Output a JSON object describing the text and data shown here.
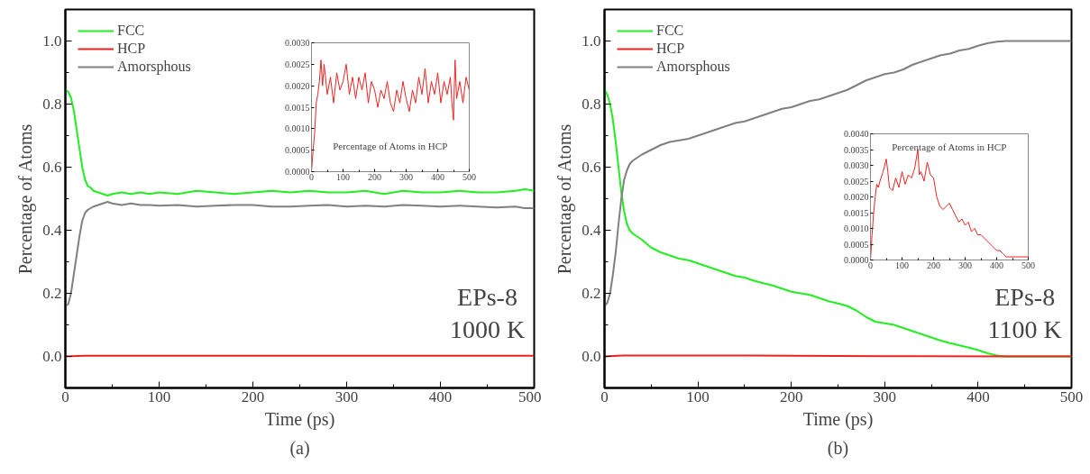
{
  "chart_data": [
    {
      "type": "line",
      "xlabel": "Time (ps)",
      "ylabel": "Percentage of Atoms",
      "legend": "top left",
      "line_style": "solid",
      "xlim": [
        0,
        500
      ],
      "ylim": [
        -0.1,
        1.1
      ],
      "xticks": [
        0,
        {
          "value": 50,
          "label": null
        },
        100,
        {
          "value": 150,
          "label": null
        },
        200,
        {
          "value": 250,
          "label": null
        },
        300,
        {
          "value": 350,
          "label": null
        },
        400,
        {
          "value": 450,
          "label": null
        },
        500
      ],
      "yticks": [
        {
          "value": -0.1,
          "label": null
        },
        {
          "value": 0,
          "label": "0.0"
        },
        {
          "value": 0.1,
          "label": null
        },
        0.2,
        {
          "value": 0.3,
          "label": null
        },
        0.4,
        {
          "value": 0.5,
          "label": null
        },
        0.6,
        {
          "value": 0.7,
          "label": null
        },
        0.8,
        {
          "value": 0.9,
          "label": null
        },
        {
          "value": 1.0,
          "label": "1.0"
        }
      ],
      "annotations": [
        "EPs-8",
        "1000 K",
        "(a)"
      ],
      "series": [
        {
          "name": "FCC",
          "color": "#22ee22",
          "x": [
            0,
            3,
            6,
            9,
            12,
            15,
            18,
            21,
            24,
            27,
            30,
            35,
            40,
            45,
            50,
            60,
            70,
            80,
            90,
            100,
            120,
            140,
            160,
            180,
            200,
            220,
            240,
            260,
            280,
            300,
            320,
            340,
            360,
            380,
            400,
            420,
            440,
            460,
            480,
            490,
            500
          ],
          "values": [
            0.845,
            0.84,
            0.82,
            0.78,
            0.72,
            0.66,
            0.6,
            0.56,
            0.54,
            0.535,
            0.525,
            0.52,
            0.515,
            0.51,
            0.515,
            0.52,
            0.515,
            0.52,
            0.515,
            0.52,
            0.515,
            0.525,
            0.52,
            0.515,
            0.52,
            0.525,
            0.52,
            0.525,
            0.52,
            0.52,
            0.525,
            0.515,
            0.525,
            0.52,
            0.52,
            0.525,
            0.52,
            0.52,
            0.525,
            0.53,
            0.525
          ]
        },
        {
          "name": "HCP",
          "color": "#ee2222",
          "x": [
            0,
            20,
            100,
            200,
            300,
            400,
            500
          ],
          "values": [
            0,
            0.002,
            0.002,
            0.002,
            0.002,
            0.002,
            0.002
          ]
        },
        {
          "name": "Amorsphous",
          "color": "#808080",
          "x": [
            0,
            3,
            6,
            9,
            12,
            15,
            18,
            21,
            24,
            27,
            30,
            35,
            40,
            45,
            50,
            60,
            70,
            80,
            90,
            100,
            120,
            140,
            160,
            180,
            200,
            220,
            240,
            260,
            280,
            300,
            320,
            340,
            360,
            380,
            400,
            420,
            440,
            460,
            480,
            490,
            500
          ],
          "values": [
            0.16,
            0.165,
            0.2,
            0.26,
            0.32,
            0.38,
            0.43,
            0.455,
            0.465,
            0.47,
            0.475,
            0.48,
            0.485,
            0.49,
            0.485,
            0.48,
            0.485,
            0.48,
            0.48,
            0.478,
            0.48,
            0.475,
            0.478,
            0.48,
            0.48,
            0.475,
            0.475,
            0.478,
            0.48,
            0.475,
            0.478,
            0.475,
            0.48,
            0.478,
            0.475,
            0.478,
            0.475,
            0.472,
            0.475,
            0.47,
            0.47
          ]
        }
      ]
    },
    {
      "type": "line",
      "xlim": [
        0,
        500
      ],
      "ylim": [
        0,
        0.003
      ],
      "xticks": [
        0,
        {
          "value": 50,
          "label": null
        },
        100,
        {
          "value": 150,
          "label": null
        },
        200,
        {
          "value": 250,
          "label": null
        },
        300,
        {
          "value": 350,
          "label": null
        },
        400,
        {
          "value": 450,
          "label": null
        },
        500
      ],
      "yticks": [
        {
          "value": 0,
          "label": "0.0000"
        },
        {
          "value": 0.0005,
          "label": "0.0005"
        },
        {
          "value": 0.001,
          "label": "0.0010"
        },
        {
          "value": 0.0015,
          "label": "0.0015"
        },
        {
          "value": 0.002,
          "label": "0.0020"
        },
        {
          "value": 0.0025,
          "label": "0.0025"
        },
        {
          "value": 0.003,
          "label": "0.0030"
        }
      ],
      "annotations": [
        "Percentage of Atoms in HCP"
      ],
      "series": [
        {
          "color": "#ee2222",
          "x": [
            0,
            5,
            10,
            15,
            20,
            25,
            30,
            35,
            40,
            50,
            60,
            70,
            80,
            90,
            100,
            110,
            120,
            130,
            140,
            150,
            160,
            170,
            180,
            190,
            200,
            210,
            220,
            230,
            240,
            250,
            260,
            270,
            280,
            290,
            300,
            310,
            320,
            330,
            340,
            350,
            360,
            370,
            380,
            390,
            400,
            410,
            420,
            430,
            440,
            445,
            450,
            455,
            460,
            470,
            480,
            490,
            500
          ],
          "values": [
            0,
            0.0005,
            0.0009,
            0.0016,
            0.0018,
            0.0021,
            0.0026,
            0.002,
            0.0025,
            0.0018,
            0.0022,
            0.0016,
            0.0023,
            0.0019,
            0.0021,
            0.0025,
            0.0018,
            0.0022,
            0.0017,
            0.0022,
            0.0019,
            0.0023,
            0.0016,
            0.0021,
            0.0019,
            0.0015,
            0.0019,
            0.0017,
            0.0021,
            0.0016,
            0.0014,
            0.0019,
            0.0016,
            0.0021,
            0.0017,
            0.0014,
            0.0019,
            0.0016,
            0.0022,
            0.0018,
            0.0024,
            0.0016,
            0.0021,
            0.0018,
            0.0023,
            0.0016,
            0.0021,
            0.0018,
            0.0022,
            0.0016,
            0.0012,
            0.0026,
            0.0017,
            0.0021,
            0.0016,
            0.0022,
            0.0019
          ]
        }
      ]
    },
    {
      "type": "line",
      "xlabel": "Time (ps)",
      "ylabel": "Percentage of Atoms",
      "legend": "top left",
      "line_style": "solid",
      "xlim": [
        0,
        500
      ],
      "ylim": [
        -0.1,
        1.1
      ],
      "xticks": [
        0,
        {
          "value": 50,
          "label": null
        },
        100,
        {
          "value": 150,
          "label": null
        },
        200,
        {
          "value": 250,
          "label": null
        },
        300,
        {
          "value": 350,
          "label": null
        },
        400,
        {
          "value": 450,
          "label": null
        },
        500
      ],
      "yticks": [
        {
          "value": -0.1,
          "label": null
        },
        {
          "value": 0,
          "label": "0.0"
        },
        {
          "value": 0.1,
          "label": null
        },
        0.2,
        {
          "value": 0.3,
          "label": null
        },
        0.4,
        {
          "value": 0.5,
          "label": null
        },
        0.6,
        {
          "value": 0.7,
          "label": null
        },
        0.8,
        {
          "value": 0.9,
          "label": null
        },
        {
          "value": 1.0,
          "label": "1.0"
        }
      ],
      "annotations": [
        "EPs-8",
        "1100 K",
        "(b)"
      ],
      "series": [
        {
          "name": "FCC",
          "color": "#22ee22",
          "x": [
            0,
            3,
            6,
            9,
            12,
            15,
            18,
            21,
            24,
            27,
            30,
            40,
            50,
            60,
            70,
            80,
            90,
            100,
            110,
            120,
            130,
            140,
            150,
            160,
            170,
            180,
            190,
            200,
            210,
            220,
            230,
            240,
            250,
            260,
            270,
            280,
            290,
            300,
            310,
            320,
            330,
            340,
            350,
            360,
            370,
            380,
            390,
            400,
            410,
            420,
            430,
            500
          ],
          "values": [
            0.845,
            0.83,
            0.8,
            0.75,
            0.68,
            0.6,
            0.52,
            0.46,
            0.42,
            0.4,
            0.39,
            0.37,
            0.345,
            0.33,
            0.32,
            0.31,
            0.305,
            0.295,
            0.285,
            0.275,
            0.265,
            0.255,
            0.25,
            0.24,
            0.232,
            0.225,
            0.215,
            0.205,
            0.2,
            0.195,
            0.185,
            0.175,
            0.168,
            0.16,
            0.145,
            0.125,
            0.11,
            0.105,
            0.1,
            0.09,
            0.08,
            0.07,
            0.06,
            0.05,
            0.042,
            0.035,
            0.028,
            0.02,
            0.01,
            0.003,
            0,
            0
          ]
        },
        {
          "name": "HCP",
          "color": "#ee2222",
          "x": [
            0,
            20,
            150,
            200,
            300,
            430,
            500
          ],
          "values": [
            0,
            0.003,
            0.003,
            0.002,
            0.001,
            0,
            0
          ]
        },
        {
          "name": "Amorsphous",
          "color": "#808080",
          "x": [
            0,
            3,
            6,
            9,
            12,
            15,
            18,
            21,
            24,
            27,
            30,
            40,
            50,
            60,
            70,
            80,
            90,
            100,
            110,
            120,
            130,
            140,
            150,
            160,
            170,
            180,
            190,
            200,
            210,
            220,
            230,
            240,
            250,
            260,
            270,
            280,
            290,
            300,
            310,
            320,
            330,
            340,
            350,
            360,
            370,
            380,
            390,
            400,
            410,
            420,
            430,
            500
          ],
          "values": [
            0.16,
            0.17,
            0.2,
            0.26,
            0.33,
            0.42,
            0.5,
            0.56,
            0.59,
            0.61,
            0.62,
            0.64,
            0.655,
            0.67,
            0.68,
            0.685,
            0.69,
            0.7,
            0.71,
            0.72,
            0.73,
            0.74,
            0.745,
            0.755,
            0.765,
            0.775,
            0.785,
            0.79,
            0.8,
            0.81,
            0.815,
            0.825,
            0.835,
            0.845,
            0.86,
            0.875,
            0.885,
            0.895,
            0.9,
            0.91,
            0.925,
            0.935,
            0.945,
            0.955,
            0.96,
            0.97,
            0.975,
            0.985,
            0.993,
            0.998,
            1.0,
            1.0
          ]
        }
      ]
    },
    {
      "type": "line",
      "xlim": [
        0,
        500
      ],
      "ylim": [
        0,
        0.004
      ],
      "xticks": [
        0,
        {
          "value": 50,
          "label": null
        },
        100,
        {
          "value": 150,
          "label": null
        },
        200,
        {
          "value": 250,
          "label": null
        },
        300,
        {
          "value": 350,
          "label": null
        },
        400,
        {
          "value": 450,
          "label": null
        },
        500
      ],
      "yticks": [
        {
          "value": 0,
          "label": "0.0000"
        },
        {
          "value": 0.0005,
          "label": "0.0005"
        },
        {
          "value": 0.001,
          "label": "0.0010"
        },
        {
          "value": 0.0015,
          "label": "0.0015"
        },
        {
          "value": 0.002,
          "label": "0.0020"
        },
        {
          "value": 0.0025,
          "label": "0.0025"
        },
        {
          "value": 0.003,
          "label": "0.0030"
        },
        {
          "value": 0.0035,
          "label": "0.0035"
        },
        {
          "value": 0.004,
          "label": "0.0040"
        }
      ],
      "annotations": [
        "Percentage of Atoms in HCP"
      ],
      "series": [
        {
          "color": "#ee2222",
          "x": [
            0,
            5,
            10,
            15,
            20,
            25,
            30,
            40,
            50,
            55,
            60,
            70,
            80,
            90,
            100,
            110,
            120,
            130,
            140,
            150,
            155,
            160,
            170,
            180,
            190,
            200,
            210,
            220,
            230,
            240,
            250,
            260,
            270,
            280,
            290,
            300,
            310,
            320,
            330,
            340,
            350,
            360,
            370,
            380,
            390,
            400,
            410,
            420,
            430,
            440,
            460,
            480,
            500
          ],
          "values": [
            0,
            0.0008,
            0.0015,
            0.002,
            0.0024,
            0.0023,
            0.0025,
            0.0028,
            0.0032,
            0.0028,
            0.0023,
            0.0022,
            0.0026,
            0.0023,
            0.0028,
            0.0024,
            0.0027,
            0.0026,
            0.0029,
            0.0035,
            0.0027,
            0.0028,
            0.0025,
            0.0031,
            0.0027,
            0.0026,
            0.002,
            0.0017,
            0.0016,
            0.0017,
            0.0018,
            0.0016,
            0.0014,
            0.0012,
            0.0013,
            0.0011,
            0.0012,
            0.0009,
            0.001,
            0.0008,
            0.0008,
            0.0007,
            0.0006,
            0.0005,
            0.0004,
            0.0003,
            0.0003,
            0.0002,
            0.0001,
            0.0001,
            0.0001,
            0.0001,
            0.0001
          ]
        }
      ]
    }
  ]
}
